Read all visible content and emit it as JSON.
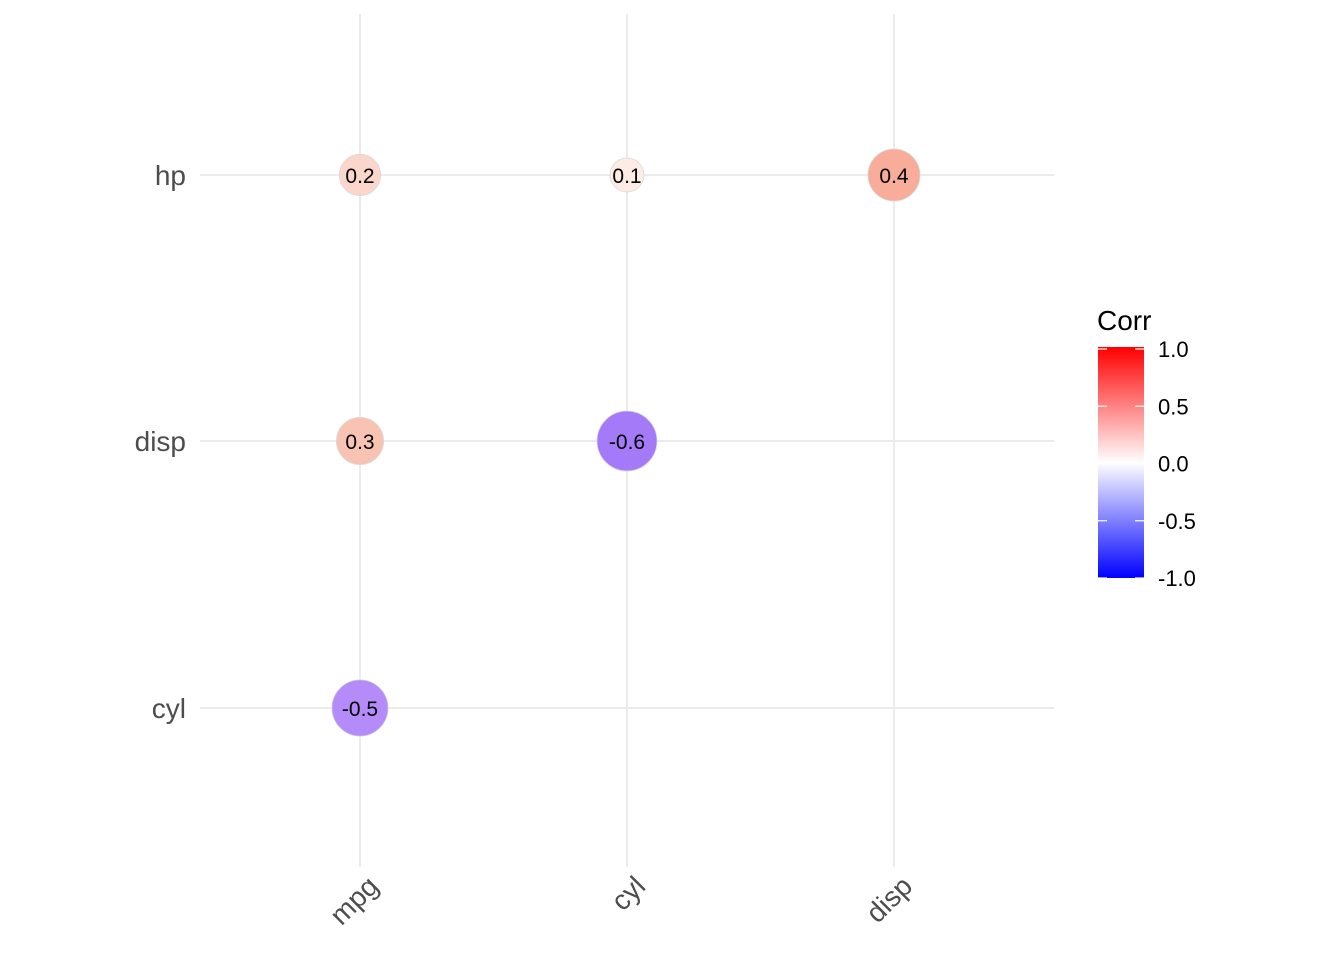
{
  "chart_data": {
    "type": "scatter",
    "subtype": "correlation-circle-matrix",
    "x_categories": [
      "mpg",
      "cyl",
      "disp"
    ],
    "y_categories": [
      "cyl",
      "disp",
      "hp"
    ],
    "cells": [
      {
        "x": "mpg",
        "y": "hp",
        "value": 0.2,
        "label": "0.2",
        "color": "#fbd6cb"
      },
      {
        "x": "cyl",
        "y": "hp",
        "value": 0.1,
        "label": "0.1",
        "color": "#fdebe6"
      },
      {
        "x": "disp",
        "y": "hp",
        "value": 0.4,
        "label": "0.4",
        "color": "#f7ad99"
      },
      {
        "x": "mpg",
        "y": "disp",
        "value": 0.3,
        "label": "0.3",
        "color": "#f9c3b3"
      },
      {
        "x": "cyl",
        "y": "disp",
        "value": -0.6,
        "label": "-0.6",
        "color": "#a57af8"
      },
      {
        "x": "mpg",
        "y": "cyl",
        "value": -0.5,
        "label": "-0.5",
        "color": "#b58af9"
      }
    ],
    "legend": {
      "title": "Corr",
      "ticks": [
        "1.0",
        "0.5",
        "0.0",
        "-0.5",
        "-1.0"
      ],
      "tick_values": [
        1.0,
        0.5,
        0.0,
        -0.5,
        -1.0
      ],
      "low_color": "#0000ff",
      "mid_color": "#ffffff",
      "high_color": "#ff0000",
      "limits": [
        -1,
        1
      ],
      "position": "right"
    },
    "grid": true
  }
}
